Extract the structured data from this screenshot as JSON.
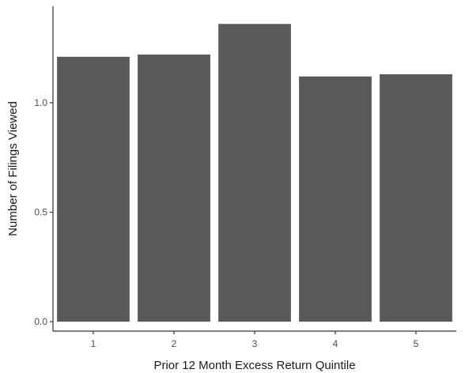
{
  "chart_data": {
    "type": "bar",
    "categories": [
      "1",
      "2",
      "3",
      "4",
      "5"
    ],
    "values": [
      1.21,
      1.22,
      1.36,
      1.12,
      1.13
    ],
    "title": "",
    "xlabel": "Prior 12 Month Excess Return Quintile",
    "ylabel": "Number of Filings Viewed",
    "ylim": [
      0,
      1.4
    ],
    "yticks": [
      0.0,
      0.5,
      1.0
    ],
    "ytick_labels": [
      "0.0",
      "0.5",
      "1.0"
    ],
    "grid": false,
    "legend": "none",
    "colors": {
      "bar": "#595959",
      "axis": "#333333",
      "background": "#ffffff"
    }
  }
}
